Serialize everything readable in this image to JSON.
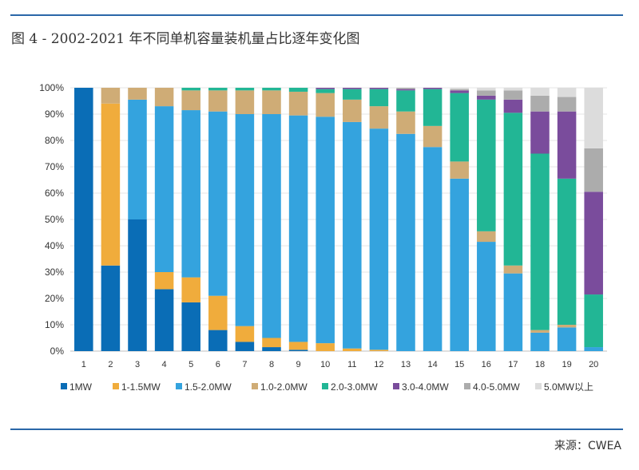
{
  "title": "图 4 - 2002-2021 年不同单机容量装机量占比逐年变化图",
  "source": "来源：CWEA",
  "colors": {
    "rule": "#2a67a8",
    "series": [
      "#0a6db6",
      "#f0ac3c",
      "#34a3de",
      "#cfac76",
      "#22b695",
      "#7a4c9c",
      "#acacac",
      "#dcdcdc"
    ]
  },
  "chart_data": {
    "type": "bar",
    "stacked": true,
    "categories": [
      "1",
      "2",
      "3",
      "4",
      "5",
      "6",
      "7",
      "8",
      "9",
      "10",
      "11",
      "12",
      "13",
      "14",
      "15",
      "16",
      "17",
      "18",
      "19",
      "20"
    ],
    "ylim": [
      0,
      100
    ],
    "yticks": [
      "0%",
      "10%",
      "20%",
      "30%",
      "40%",
      "50%",
      "60%",
      "70%",
      "80%",
      "90%",
      "100%"
    ],
    "grid": true,
    "legend": "bottom",
    "series": [
      {
        "name": "1MW",
        "values": [
          100,
          32.5,
          50,
          23.5,
          18.5,
          8,
          3.5,
          1.5,
          0.5,
          0,
          0,
          0,
          0,
          0,
          0,
          0,
          0,
          0,
          0,
          0
        ]
      },
      {
        "name": "1-1.5MW",
        "values": [
          0,
          61.5,
          0,
          6.5,
          9.5,
          13,
          6,
          3.5,
          3,
          3,
          1,
          0.5,
          0,
          0,
          0,
          0,
          0,
          0,
          0,
          0
        ]
      },
      {
        "name": "1.5-2.0MW",
        "values": [
          0,
          0,
          45.5,
          63,
          63.5,
          70,
          80.5,
          85,
          86,
          86,
          86,
          84,
          82.5,
          77.5,
          65.5,
          41.5,
          29.5,
          7,
          9,
          1.5
        ]
      },
      {
        "name": "1.0-2.0MW",
        "values": [
          0,
          6,
          4.5,
          7,
          7.5,
          8,
          9,
          9,
          9,
          9,
          8.5,
          8.5,
          8.5,
          8,
          6.5,
          4,
          3,
          1,
          1,
          0
        ]
      },
      {
        "name": "2.0-3.0MW",
        "values": [
          0,
          0,
          0,
          0,
          1,
          1,
          1,
          1,
          1.5,
          1.5,
          4,
          6.5,
          8,
          14,
          26,
          50,
          58,
          67,
          55.5,
          20
        ]
      },
      {
        "name": "3.0-4.0MW",
        "values": [
          0,
          0,
          0,
          0,
          0,
          0,
          0,
          0,
          0,
          0.5,
          0.5,
          0.5,
          0.5,
          0.5,
          1,
          1.5,
          5,
          16,
          25.5,
          39
        ]
      },
      {
        "name": "4.0-5.0MW",
        "values": [
          0,
          0,
          0,
          0,
          0,
          0,
          0,
          0,
          0,
          0,
          0,
          0,
          0.5,
          0,
          0.5,
          2,
          3.5,
          6,
          5.5,
          16.5
        ]
      },
      {
        "name": "5.0MW以上",
        "values": [
          0,
          0,
          0,
          0,
          0,
          0,
          0,
          0,
          0,
          0,
          0,
          0,
          0,
          0,
          0.5,
          1,
          1,
          3,
          3.5,
          23
        ]
      }
    ]
  }
}
